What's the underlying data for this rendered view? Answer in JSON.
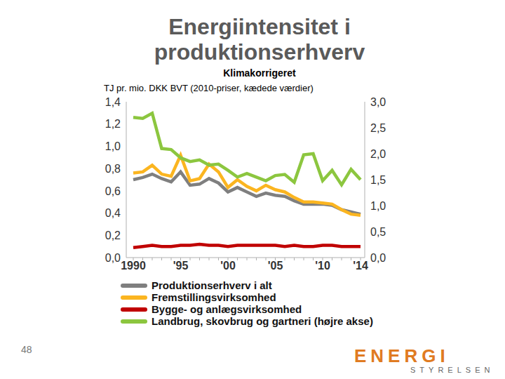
{
  "chart_data": {
    "type": "line",
    "title": "Energiintensitet i produktionserhverv",
    "subtitle": "Klimakorrigeret",
    "y_label": "TJ pr. mio. DKK BVT (2010-priser, kædede værdier)",
    "categories": [
      "1990",
      null,
      null,
      null,
      null,
      "'95",
      null,
      null,
      null,
      null,
      "'00",
      null,
      null,
      null,
      null,
      "'05",
      null,
      null,
      null,
      null,
      "'10",
      null,
      null,
      null,
      "'14"
    ],
    "series": [
      {
        "name": "Produktionserhverv i alt",
        "color": "#7f7f7f",
        "axis": "y",
        "values": [
          0.7,
          0.72,
          0.75,
          0.71,
          0.68,
          0.77,
          0.65,
          0.66,
          0.71,
          0.67,
          0.59,
          0.63,
          0.59,
          0.55,
          0.58,
          0.56,
          0.55,
          0.51,
          0.48,
          0.48,
          0.48,
          0.47,
          0.43,
          0.41,
          0.39
        ]
      },
      {
        "name": "Fremstillingsvirksomhed",
        "color": "#fbb520",
        "axis": "y",
        "values": [
          0.76,
          0.77,
          0.83,
          0.75,
          0.73,
          0.92,
          0.69,
          0.71,
          0.84,
          0.77,
          0.63,
          0.7,
          0.64,
          0.6,
          0.65,
          0.61,
          0.59,
          0.54,
          0.5,
          0.5,
          0.49,
          0.48,
          0.43,
          0.39,
          0.38
        ]
      },
      {
        "name": "Bygge- og anlægsvirksomhed",
        "color": "#c00000",
        "axis": "y",
        "values": [
          0.09,
          0.1,
          0.11,
          0.1,
          0.1,
          0.11,
          0.11,
          0.12,
          0.11,
          0.11,
          0.1,
          0.11,
          0.11,
          0.11,
          0.11,
          0.11,
          0.1,
          0.11,
          0.1,
          0.1,
          0.11,
          0.11,
          0.1,
          0.1,
          0.1
        ]
      },
      {
        "name": "Landbrug, skovbrug og gartneri (højre akse)",
        "color": "#8cc63f",
        "axis": "y2",
        "values": [
          2.7,
          2.68,
          2.78,
          2.1,
          2.08,
          1.92,
          1.85,
          1.88,
          1.78,
          1.8,
          1.68,
          1.55,
          1.62,
          1.55,
          1.48,
          1.58,
          1.6,
          1.45,
          1.98,
          2.0,
          1.48,
          1.68,
          1.4,
          1.7,
          1.5
        ]
      }
    ],
    "ylim": [
      0,
      1.4
    ],
    "yticks": [
      {
        "value": 0,
        "label": "0,0"
      },
      {
        "value": 0.2,
        "label": "0,2"
      },
      {
        "value": 0.4,
        "label": "0,4"
      },
      {
        "value": 0.6,
        "label": "0,6"
      },
      {
        "value": 0.8,
        "label": "0,8"
      },
      {
        "value": 1.0,
        "label": "1,0"
      },
      {
        "value": 1.2,
        "label": "1,2"
      },
      {
        "value": 1.4,
        "label": "1,4"
      }
    ],
    "y2lim": [
      0,
      3
    ],
    "y2ticks": [
      {
        "value": 0,
        "label": "0,0"
      },
      {
        "value": 0.5,
        "label": "0,5"
      },
      {
        "value": 1.0,
        "label": "1,0"
      },
      {
        "value": 1.5,
        "label": "1,5"
      },
      {
        "value": 2.0,
        "label": "2,0"
      },
      {
        "value": 2.5,
        "label": "2,5"
      },
      {
        "value": 3.0,
        "label": "3,0"
      }
    ],
    "grid": false,
    "legend": "bottom"
  },
  "footer": {
    "page_number": "48",
    "logo": [
      "ENERGI",
      "STYRELSEN"
    ]
  }
}
